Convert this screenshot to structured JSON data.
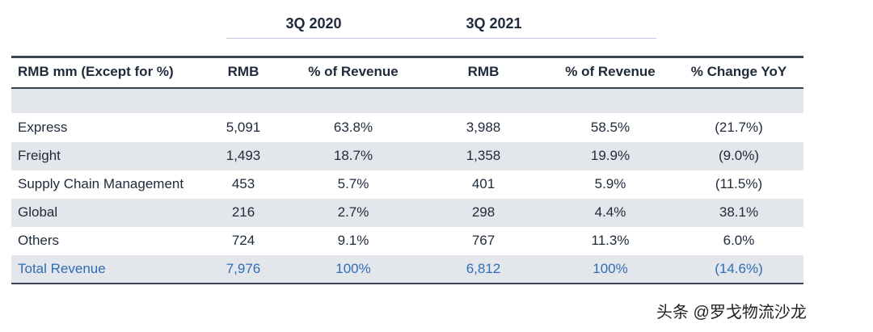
{
  "header": {
    "periods": [
      "3Q 2020",
      "3Q 2021"
    ]
  },
  "table": {
    "columns": [
      "RMB mm (Except for %)",
      "RMB",
      "% of Revenue",
      "RMB",
      "% of Revenue",
      "% Change YoY"
    ],
    "rows": [
      [
        "Express",
        "5,091",
        "63.8%",
        "3,988",
        "58.5%",
        "(21.7%)"
      ],
      [
        "Freight",
        "1,493",
        "18.7%",
        "1,358",
        "19.9%",
        "(9.0%)"
      ],
      [
        "Supply Chain Management",
        "453",
        "5.7%",
        "401",
        "5.9%",
        "(11.5%)"
      ],
      [
        "Global",
        "216",
        "2.7%",
        "298",
        "4.4%",
        "38.1%"
      ],
      [
        "Others",
        "724",
        "9.1%",
        "767",
        "11.3%",
        "6.0%"
      ]
    ],
    "total": [
      "Total Revenue",
      "7,976",
      "100%",
      "6,812",
      "100%",
      "(14.6%)"
    ]
  },
  "watermark": "头条 @罗戈物流沙龙"
}
